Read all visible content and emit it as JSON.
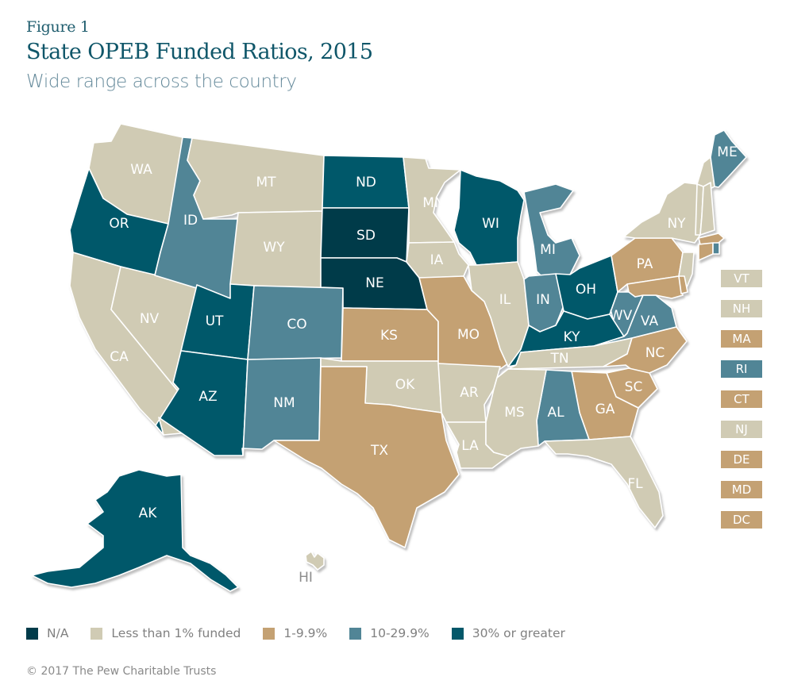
{
  "header": {
    "figure_label": "Figure 1",
    "title": "State OPEB Funded Ratios, 2015",
    "subtitle": "Wide range across the country"
  },
  "categories": {
    "na": {
      "label": "N/A",
      "color": "#003b4a"
    },
    "lt1": {
      "label": "Less than 1% funded",
      "color": "#d0cbb4"
    },
    "c1to9": {
      "label": "1-9.9%",
      "color": "#c4a173"
    },
    "c10to29": {
      "label": "10-29.9%",
      "color": "#518596"
    },
    "c30plus": {
      "label": "30% or greater",
      "color": "#03586a"
    }
  },
  "legend_order": [
    "na",
    "lt1",
    "c1to9",
    "c10to29",
    "c30plus"
  ],
  "states": {
    "WA": "lt1",
    "OR": "c30plus",
    "CA": "lt1",
    "NV": "lt1",
    "ID": "c10to29",
    "MT": "lt1",
    "WY": "lt1",
    "UT": "c30plus",
    "AZ": "c30plus",
    "CO": "c10to29",
    "NM": "c10to29",
    "ND": "c30plus",
    "SD": "na",
    "NE": "na",
    "KS": "c1to9",
    "OK": "lt1",
    "TX": "c1to9",
    "MN": "lt1",
    "IA": "lt1",
    "MO": "c1to9",
    "AR": "lt1",
    "LA": "lt1",
    "WI": "c30plus",
    "IL": "lt1",
    "MI": "c10to29",
    "IN": "c10to29",
    "OH": "c30plus",
    "KY": "c30plus",
    "TN": "lt1",
    "MS": "lt1",
    "AL": "c10to29",
    "GA": "c1to9",
    "FL": "lt1",
    "SC": "c1to9",
    "NC": "c1to9",
    "VA": "c10to29",
    "WV": "c10to29",
    "PA": "c1to9",
    "NY": "lt1",
    "ME": "c10to29",
    "AK": "c30plus",
    "HI": "lt1"
  },
  "small_states": [
    {
      "label": "VT",
      "category": "lt1"
    },
    {
      "label": "NH",
      "category": "lt1"
    },
    {
      "label": "MA",
      "category": "c1to9"
    },
    {
      "label": "RI",
      "category": "c10to29"
    },
    {
      "label": "CT",
      "category": "c1to9"
    },
    {
      "label": "NJ",
      "category": "lt1"
    },
    {
      "label": "DE",
      "category": "c1to9"
    },
    {
      "label": "MD",
      "category": "c1to9"
    },
    {
      "label": "DC",
      "category": "c1to9"
    }
  ],
  "footer": {
    "credit": "© 2017 The Pew Charitable Trusts"
  }
}
